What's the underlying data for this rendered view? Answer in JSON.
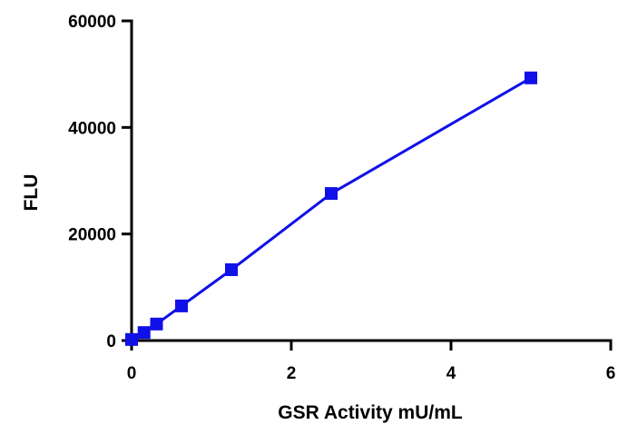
{
  "chart_data": {
    "type": "line",
    "title": "",
    "xlabel": "GSR Activity mU/mL",
    "ylabel": "FLU",
    "xlim": [
      0,
      6
    ],
    "ylim": [
      0,
      60000
    ],
    "x_ticks": [
      0,
      2,
      4,
      6
    ],
    "y_ticks": [
      0,
      20000,
      40000,
      60000
    ],
    "x_tick_labels": [
      "0",
      "2",
      "4",
      "6"
    ],
    "y_tick_labels": [
      "0",
      "20000",
      "40000",
      "60000"
    ],
    "grid": false,
    "legend": "none",
    "series": [
      {
        "color": "#1010e8",
        "marker": "square",
        "x": [
          0,
          0.156,
          0.3125,
          0.625,
          1.25,
          2.5,
          5
        ],
        "y": [
          200,
          1500,
          3100,
          6500,
          13300,
          27600,
          49300
        ]
      }
    ]
  }
}
